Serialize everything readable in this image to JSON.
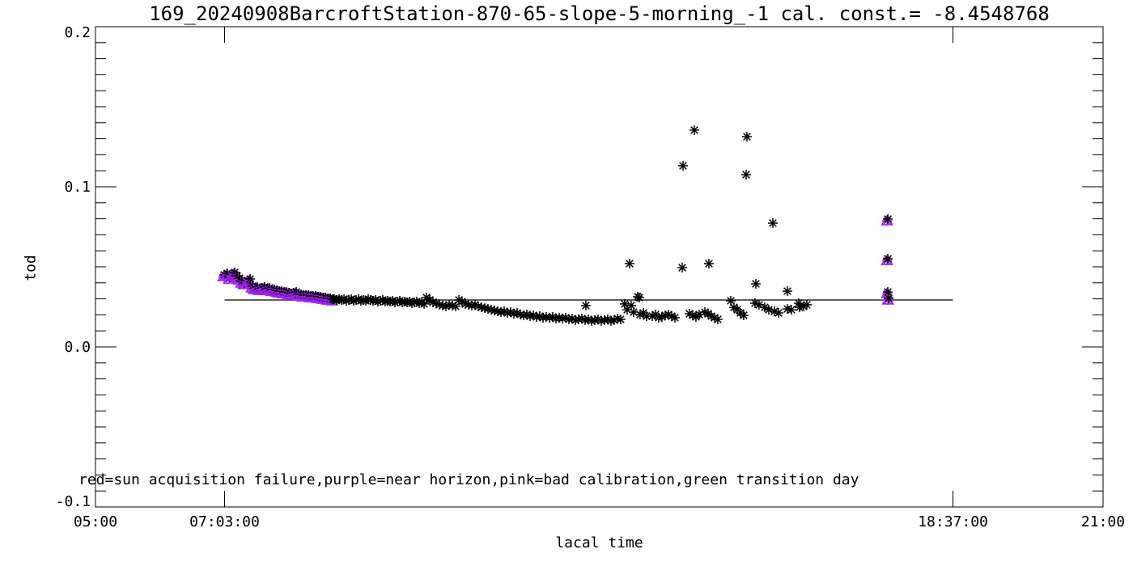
{
  "chart_data": {
    "type": "scatter",
    "title": "169_20240908BarcroftStation-870-65-slope-5-morning_-1 cal. const.= -8.4548768",
    "xlabel": "lacal time",
    "ylabel": "tod",
    "annotation": "red=sun acquisition failure,purple=near horizon,pink=bad calibration,green transition day",
    "legend_colors": {
      "sun_acquisition_failure": "red",
      "near_horizon": "purple",
      "bad_calibration": "pink",
      "transition_day": "green"
    },
    "grid": false,
    "x_axis": {
      "min": 5,
      "max": 21,
      "ticks": [
        {
          "hours": 5.0,
          "label": "05:00"
        },
        {
          "hours": 7.05,
          "label": "07:03:00"
        },
        {
          "hours": 18.6167,
          "label": "18:37:00"
        },
        {
          "hours": 21.0,
          "label": "21:00"
        }
      ]
    },
    "y_axis": {
      "min": -0.1,
      "max": 0.2,
      "major_ticks": [
        -0.1,
        0.0,
        0.1,
        0.2
      ],
      "major_labels": [
        "-0.1",
        "0.0",
        "0.1",
        "0.2"
      ],
      "minor_step": 0.01
    },
    "ref_line": {
      "value": 0.0293,
      "x_start_hours": 7.05,
      "x_end_hours": 18.6167
    },
    "colors": {
      "black": "#000000",
      "purple": "#A020F0"
    },
    "series": [
      {
        "name": "near-horizon-morning",
        "marker": "triangle-asterisk",
        "color": "#A020F0",
        "overlay_black_asterisk": true,
        "points": [
          [
            7.031,
            0.0439
          ],
          [
            7.082,
            0.0449
          ],
          [
            7.121,
            0.0424
          ],
          [
            7.159,
            0.0444
          ],
          [
            7.198,
            0.0455
          ],
          [
            7.236,
            0.0434
          ],
          [
            7.275,
            0.0419
          ],
          [
            7.314,
            0.0399
          ],
          [
            7.352,
            0.0389
          ],
          [
            7.403,
            0.0404
          ],
          [
            7.442,
            0.0414
          ],
          [
            7.48,
            0.0369
          ],
          [
            7.519,
            0.0358
          ],
          [
            7.557,
            0.0364
          ],
          [
            7.596,
            0.0353
          ],
          [
            7.635,
            0.0358
          ],
          [
            7.673,
            0.0364
          ],
          [
            7.712,
            0.0353
          ],
          [
            7.75,
            0.0358
          ],
          [
            7.789,
            0.0348
          ],
          [
            7.827,
            0.0348
          ],
          [
            7.866,
            0.0343
          ],
          [
            7.904,
            0.0338
          ],
          [
            7.943,
            0.0338
          ],
          [
            7.982,
            0.0333
          ],
          [
            8.02,
            0.0333
          ],
          [
            8.059,
            0.0328
          ],
          [
            8.097,
            0.0323
          ],
          [
            8.136,
            0.0328
          ],
          [
            8.175,
            0.0333
          ],
          [
            8.213,
            0.0318
          ],
          [
            8.252,
            0.0318
          ],
          [
            8.29,
            0.0313
          ],
          [
            8.329,
            0.0313
          ],
          [
            8.367,
            0.0313
          ],
          [
            8.406,
            0.0308
          ],
          [
            8.444,
            0.0308
          ],
          [
            8.483,
            0.0308
          ],
          [
            8.522,
            0.0303
          ],
          [
            8.56,
            0.0303
          ],
          [
            8.599,
            0.0298
          ],
          [
            8.637,
            0.0298
          ],
          [
            8.676,
            0.0293
          ],
          [
            8.714,
            0.0293
          ],
          [
            8.753,
            0.0288
          ]
        ]
      },
      {
        "name": "main-band",
        "marker": "asterisk",
        "color": "#000000",
        "overlay_black_asterisk": false,
        "points": [
          [
            8.791,
            0.0298
          ],
          [
            8.83,
            0.0293
          ],
          [
            8.868,
            0.0298
          ],
          [
            8.907,
            0.0293
          ],
          [
            8.946,
            0.0298
          ],
          [
            8.984,
            0.0288
          ],
          [
            9.023,
            0.0293
          ],
          [
            9.061,
            0.0298
          ],
          [
            9.1,
            0.0288
          ],
          [
            9.138,
            0.0293
          ],
          [
            9.177,
            0.0298
          ],
          [
            9.215,
            0.0288
          ],
          [
            9.254,
            0.0293
          ],
          [
            9.293,
            0.0288
          ],
          [
            9.331,
            0.0298
          ],
          [
            9.37,
            0.0293
          ],
          [
            9.408,
            0.0288
          ],
          [
            9.447,
            0.0293
          ],
          [
            9.485,
            0.0283
          ],
          [
            9.524,
            0.0288
          ],
          [
            9.562,
            0.0293
          ],
          [
            9.601,
            0.0283
          ],
          [
            9.64,
            0.0288
          ],
          [
            9.678,
            0.0283
          ],
          [
            9.717,
            0.0288
          ],
          [
            9.755,
            0.0278
          ],
          [
            9.794,
            0.0283
          ],
          [
            9.832,
            0.0288
          ],
          [
            9.871,
            0.0278
          ],
          [
            9.91,
            0.0283
          ],
          [
            9.948,
            0.0278
          ],
          [
            9.987,
            0.0283
          ],
          [
            10.025,
            0.0273
          ],
          [
            10.064,
            0.0278
          ],
          [
            10.102,
            0.0283
          ],
          [
            10.141,
            0.0273
          ],
          [
            10.18,
            0.0278
          ],
          [
            10.218,
            0.0268
          ],
          [
            10.257,
            0.0308
          ],
          [
            10.308,
            0.0293
          ],
          [
            10.359,
            0.0278
          ],
          [
            10.411,
            0.0273
          ],
          [
            10.462,
            0.0263
          ],
          [
            10.514,
            0.0258
          ],
          [
            10.565,
            0.0253
          ],
          [
            10.616,
            0.0263
          ],
          [
            10.668,
            0.0258
          ],
          [
            10.719,
            0.0253
          ],
          [
            10.771,
            0.0293
          ],
          [
            10.822,
            0.0283
          ],
          [
            10.873,
            0.0268
          ],
          [
            10.925,
            0.0263
          ],
          [
            10.976,
            0.0258
          ],
          [
            11.028,
            0.0263
          ],
          [
            11.079,
            0.0253
          ],
          [
            11.13,
            0.0247
          ],
          [
            11.182,
            0.0242
          ],
          [
            11.233,
            0.0237
          ],
          [
            11.284,
            0.0232
          ],
          [
            11.336,
            0.0227
          ],
          [
            11.387,
            0.0222
          ],
          [
            11.439,
            0.0217
          ],
          [
            11.49,
            0.0222
          ],
          [
            11.541,
            0.0212
          ],
          [
            11.593,
            0.0217
          ],
          [
            11.644,
            0.0207
          ],
          [
            11.696,
            0.0212
          ],
          [
            11.747,
            0.0202
          ],
          [
            11.798,
            0.0197
          ],
          [
            11.85,
            0.0202
          ],
          [
            11.901,
            0.0192
          ],
          [
            11.953,
            0.0197
          ],
          [
            12.004,
            0.0187
          ],
          [
            12.055,
            0.0192
          ],
          [
            12.107,
            0.0182
          ],
          [
            12.158,
            0.0187
          ],
          [
            12.209,
            0.0182
          ],
          [
            12.261,
            0.0187
          ],
          [
            12.312,
            0.0177
          ],
          [
            12.364,
            0.0182
          ],
          [
            12.415,
            0.0177
          ],
          [
            12.466,
            0.0182
          ],
          [
            12.518,
            0.0172
          ],
          [
            12.569,
            0.0177
          ],
          [
            12.621,
            0.0167
          ],
          [
            12.672,
            0.0172
          ],
          [
            12.723,
            0.0177
          ],
          [
            12.775,
            0.0167
          ],
          [
            12.826,
            0.0172
          ],
          [
            12.877,
            0.0162
          ],
          [
            12.929,
            0.0167
          ],
          [
            12.98,
            0.0172
          ],
          [
            13.032,
            0.0162
          ],
          [
            13.083,
            0.0167
          ],
          [
            13.134,
            0.0172
          ],
          [
            13.186,
            0.0162
          ],
          [
            13.237,
            0.0167
          ],
          [
            13.289,
            0.0177
          ],
          [
            13.34,
            0.0172
          ]
        ]
      },
      {
        "name": "afternoon-scatter",
        "marker": "asterisk",
        "color": "#000000",
        "overlay_black_asterisk": false,
        "points": [
          [
            12.787,
            0.0258
          ],
          [
            13.404,
            0.0268
          ],
          [
            13.443,
            0.0232
          ],
          [
            13.481,
            0.052
          ],
          [
            13.507,
            0.0258
          ],
          [
            13.546,
            0.0217
          ],
          [
            13.61,
            0.0313
          ],
          [
            13.635,
            0.0308
          ],
          [
            13.648,
            0.0202
          ],
          [
            13.7,
            0.0212
          ],
          [
            13.751,
            0.0192
          ],
          [
            13.841,
            0.0192
          ],
          [
            13.893,
            0.0202
          ],
          [
            13.944,
            0.0182
          ],
          [
            13.995,
            0.0187
          ],
          [
            14.047,
            0.0197
          ],
          [
            14.098,
            0.0202
          ],
          [
            14.15,
            0.0192
          ],
          [
            14.201,
            0.0182
          ],
          [
            14.317,
            0.0495
          ],
          [
            14.33,
            0.1131
          ],
          [
            14.433,
            0.0207
          ],
          [
            14.484,
            0.0197
          ],
          [
            14.51,
            0.1354
          ],
          [
            14.535,
            0.0187
          ],
          [
            14.587,
            0.0202
          ],
          [
            14.677,
            0.0217
          ],
          [
            14.728,
            0.0207
          ],
          [
            14.741,
            0.052
          ],
          [
            14.78,
            0.0192
          ],
          [
            14.831,
            0.0182
          ],
          [
            14.882,
            0.0172
          ],
          [
            15.088,
            0.0288
          ],
          [
            15.139,
            0.0247
          ],
          [
            15.191,
            0.0232
          ],
          [
            15.242,
            0.0212
          ],
          [
            15.293,
            0.0197
          ],
          [
            15.332,
            0.1076
          ],
          [
            15.345,
            0.1313
          ],
          [
            15.473,
            0.0273
          ],
          [
            15.486,
            0.0394
          ],
          [
            15.537,
            0.0263
          ],
          [
            15.627,
            0.0247
          ],
          [
            15.692,
            0.0232
          ],
          [
            15.756,
            0.0773
          ],
          [
            15.782,
            0.0222
          ],
          [
            15.846,
            0.0212
          ],
          [
            15.987,
            0.0348
          ],
          [
            15.987,
            0.0237
          ],
          [
            16.051,
            0.0232
          ],
          [
            16.167,
            0.0273
          ],
          [
            16.18,
            0.0247
          ],
          [
            16.244,
            0.0253
          ],
          [
            16.296,
            0.0263
          ]
        ]
      },
      {
        "name": "near-horizon-evening",
        "marker": "triangle-asterisk",
        "color": "#A020F0",
        "overlay_black_asterisk": true,
        "points": [
          [
            17.57,
            0.0788
          ],
          [
            17.57,
            0.054
          ],
          [
            17.57,
            0.0333
          ],
          [
            17.583,
            0.0293
          ]
        ]
      }
    ]
  }
}
